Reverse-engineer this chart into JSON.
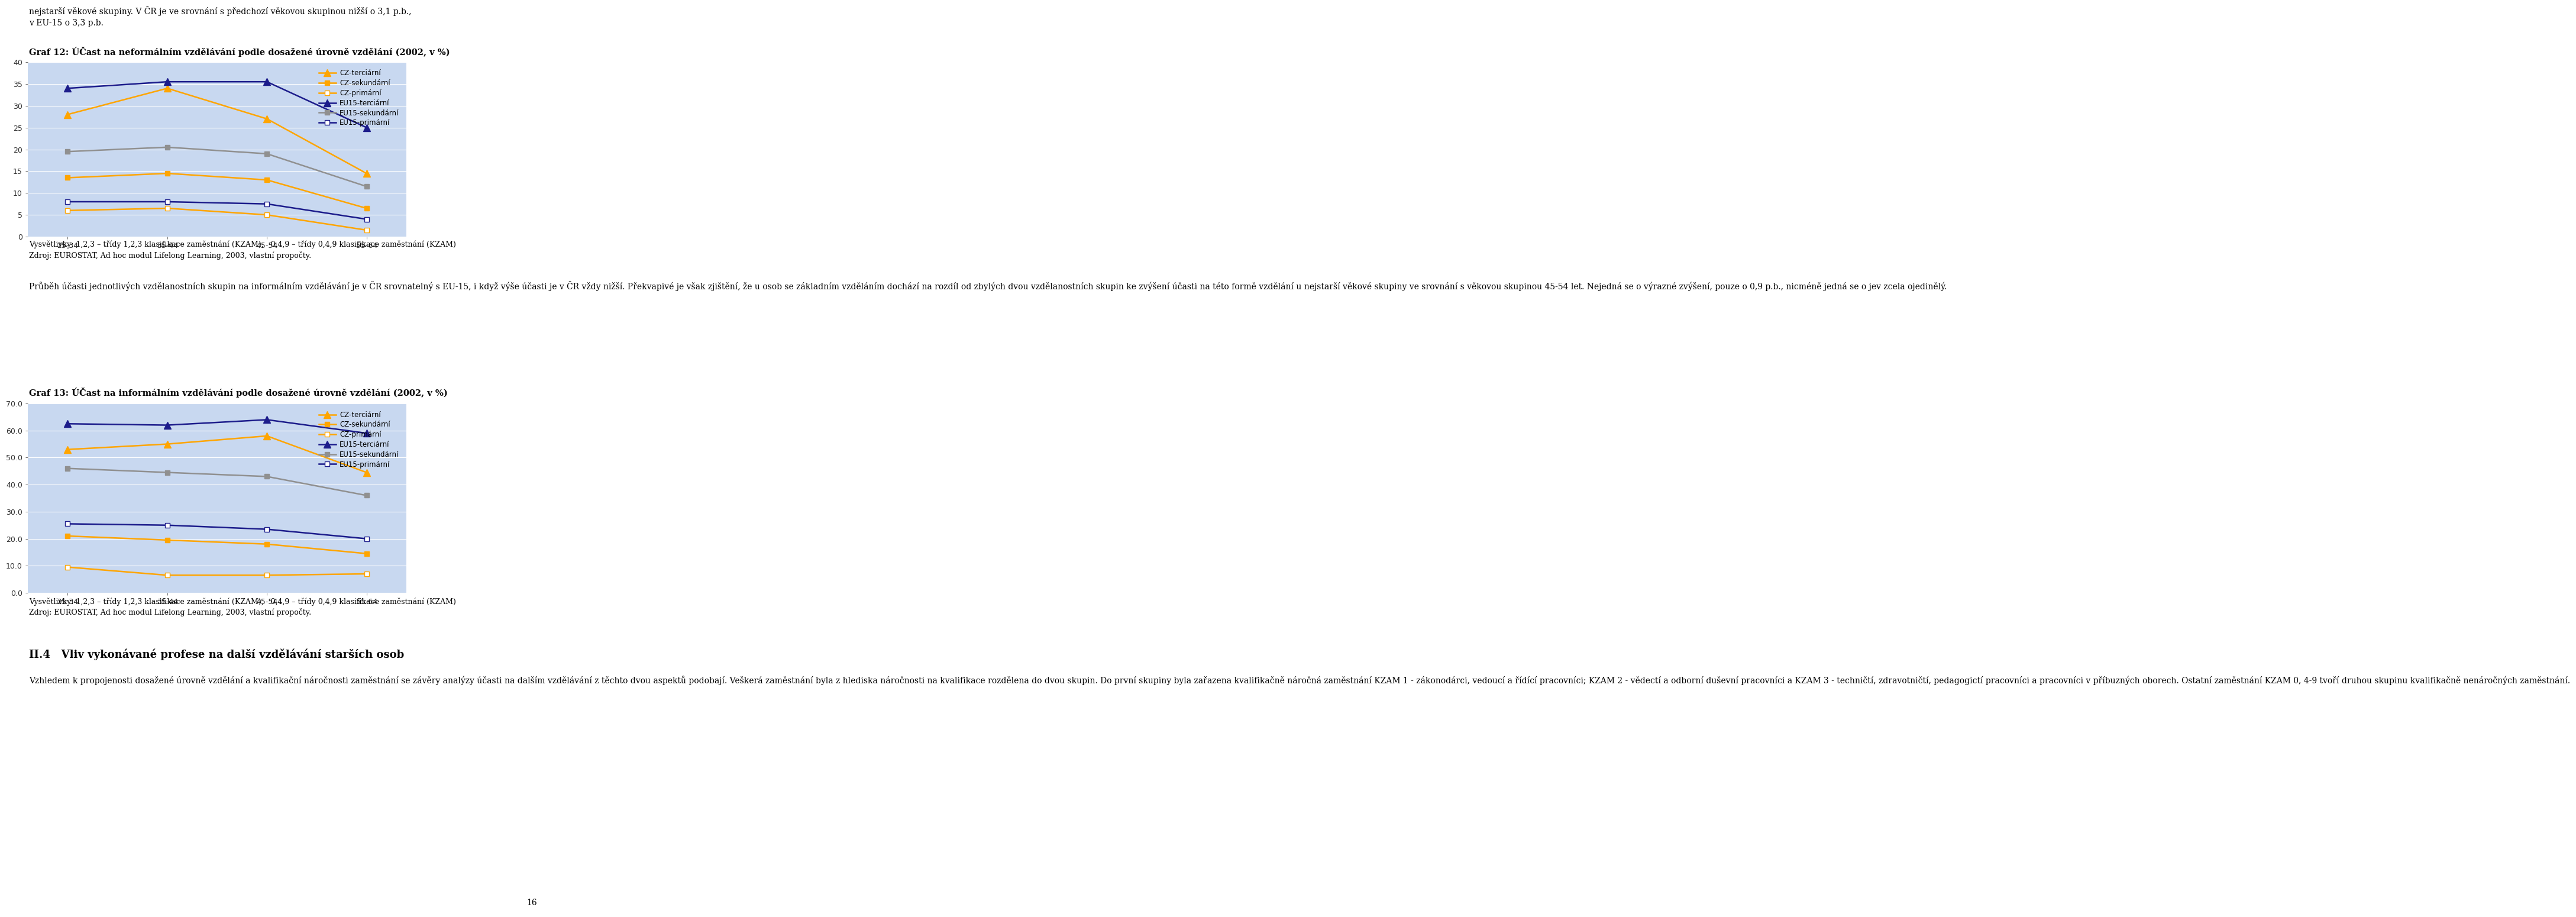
{
  "page_texts": {
    "top_text": "nejstarší věkové skupiny. V ČR je ve srovnání s předchozí věkovou skupinou nižší o 3,1 p.b.,\nv EU-15 o 3,3 p.b.",
    "graf12_title": "Graf 12: ÚČast na neformálním vzdělávání podle dosažené úrovně vzdělání (2002, v %)",
    "graf12_note": "Vysvětlivky: 1,2,3 – třídy 1,2,3 klasifikace zaměstnání (KZAM),   0,4,9 – třídy 0,4,9 klasifikace zaměstnání (KZAM)\nZdroj: EUROSTAT, Ad hoc modul Lifelong Learning, 2003, vlastní propočty.",
    "graf13_title": "Graf 13: ÚČast na informálním vzdělávání podle dosažené úrovně vzdělání (2002, v %)",
    "graf13_note": "Vysvětlivky: 1,2,3 – třídy 1,2,3 klasifikace zaměstnání (KZAM),   0,4,9 – třídy 0,4,9 klasifikace zaměstnání (KZAM)\nZdroj: EUROSTAT, Ad hoc modul Lifelong Learning, 2003, vlastní propočty.",
    "section_title": "II.4   Vliv vykonávané profese na další vzdělávání starších osob",
    "page_number": "16"
  },
  "graf12": {
    "categories": [
      "25-34",
      "35-44",
      "45-54",
      "55-64"
    ],
    "ylim": [
      0,
      40
    ],
    "yticks": [
      0,
      5,
      10,
      15,
      20,
      25,
      30,
      35,
      40
    ],
    "series": {
      "CZ-terciární": {
        "values": [
          28.0,
          34.0,
          27.0,
          14.5
        ],
        "color": "#FFA500",
        "marker": "^",
        "filled": true
      },
      "CZ-sekundární": {
        "values": [
          13.5,
          14.5,
          13.0,
          6.5
        ],
        "color": "#FFA500",
        "marker": "s",
        "filled": true
      },
      "CZ-primární": {
        "values": [
          6.0,
          6.5,
          5.0,
          1.5
        ],
        "color": "#FFA500",
        "marker": "s",
        "filled": false
      },
      "EU15-terciární": {
        "values": [
          34.0,
          35.5,
          35.5,
          25.0
        ],
        "color": "#1C1C8B",
        "marker": "^",
        "filled": true
      },
      "EU15-sekundární": {
        "values": [
          19.5,
          20.5,
          19.0,
          11.5
        ],
        "color": "#909090",
        "marker": "s",
        "filled": true
      },
      "EU15-primární": {
        "values": [
          8.0,
          8.0,
          7.5,
          4.0
        ],
        "color": "#1C1C8B",
        "marker": "s",
        "filled": false
      }
    },
    "legend_order": [
      "CZ-terciární",
      "CZ-sekundární",
      "CZ-primární",
      "EU15-terciární",
      "EU15-sekundární",
      "EU15-primární"
    ],
    "bg_color": "#C8D8F0",
    "ytick_fmt": "int"
  },
  "graf13": {
    "categories": [
      "25-34",
      "35-44",
      "45-54",
      "55-64"
    ],
    "ylim": [
      0,
      70
    ],
    "yticks": [
      0.0,
      10.0,
      20.0,
      30.0,
      40.0,
      50.0,
      60.0,
      70.0
    ],
    "series": {
      "CZ-terciární": {
        "values": [
          53.0,
          55.0,
          58.0,
          44.5
        ],
        "color": "#FFA500",
        "marker": "^",
        "filled": true
      },
      "CZ-sekundární": {
        "values": [
          21.0,
          19.5,
          18.0,
          14.5
        ],
        "color": "#FFA500",
        "marker": "s",
        "filled": true
      },
      "CZ-primární": {
        "values": [
          9.5,
          6.5,
          6.5,
          7.0
        ],
        "color": "#FFA500",
        "marker": "s",
        "filled": false
      },
      "EU15-terciární": {
        "values": [
          62.5,
          62.0,
          64.0,
          59.0
        ],
        "color": "#1C1C8B",
        "marker": "^",
        "filled": true
      },
      "EU15-sekundární": {
        "values": [
          46.0,
          44.5,
          43.0,
          36.0
        ],
        "color": "#909090",
        "marker": "s",
        "filled": true
      },
      "EU15-primární": {
        "values": [
          25.5,
          25.0,
          23.5,
          20.0
        ],
        "color": "#1C1C8B",
        "marker": "s",
        "filled": false
      }
    },
    "legend_order": [
      "CZ-terciární",
      "CZ-sekundární",
      "CZ-primární",
      "EU15-terciární",
      "EU15-sekundární",
      "EU15-primární"
    ],
    "bg_color": "#C8D8F0",
    "ytick_fmt": "dec1"
  },
  "mid_para": "Průběh účasti jednotlivých vzdělanostních skupin na informálním vzdělávání je v ČR srovnatelný s EU-15, i když výše účasti je v ČR vždy nižší. Překvapivé je však zjištění, že u osob se základním vzděláním dochází na rozdíl od zbylých dvou vzdělanostních skupin ke zvýšení účasti na této formě vzdělání u nejstarší věkové skupiny ve srovnání s věkovou skupinou 45-54 let. Nejedná se o výrazné zvýšení, pouze o 0,9 p.b., nicméně jedná se o jev zcela ojedinělý.",
  "bot_para": "Vzhledem k propojenosti dosažené úrovně vzdělání a kvalifikační náročnosti zaměstnání se závěry analýzy účasti na dalším vzdělávání z těchto dvou aspektů podobají. Veškerá zaměstnání byla z hlediska náročnosti na kvalifikace rozdělena do dvou skupin. Do první skupiny byla zařazena kvalifikačně náročná zaměstnání KZAM 1 - zákonodárci, vedoucí a řídící pracovníci; KZAM 2 - vědectí a odborní duševní pracovníci a KZAM 3 - techničtí, zdravotničtí, pedagogictí pracovníci a pracovníci v příbuzných oborech. Ostatní zaměstnání KZAM 0, 4-9 tvoří druhou skupinu kvalifikačně nenáročných zaměstnání."
}
